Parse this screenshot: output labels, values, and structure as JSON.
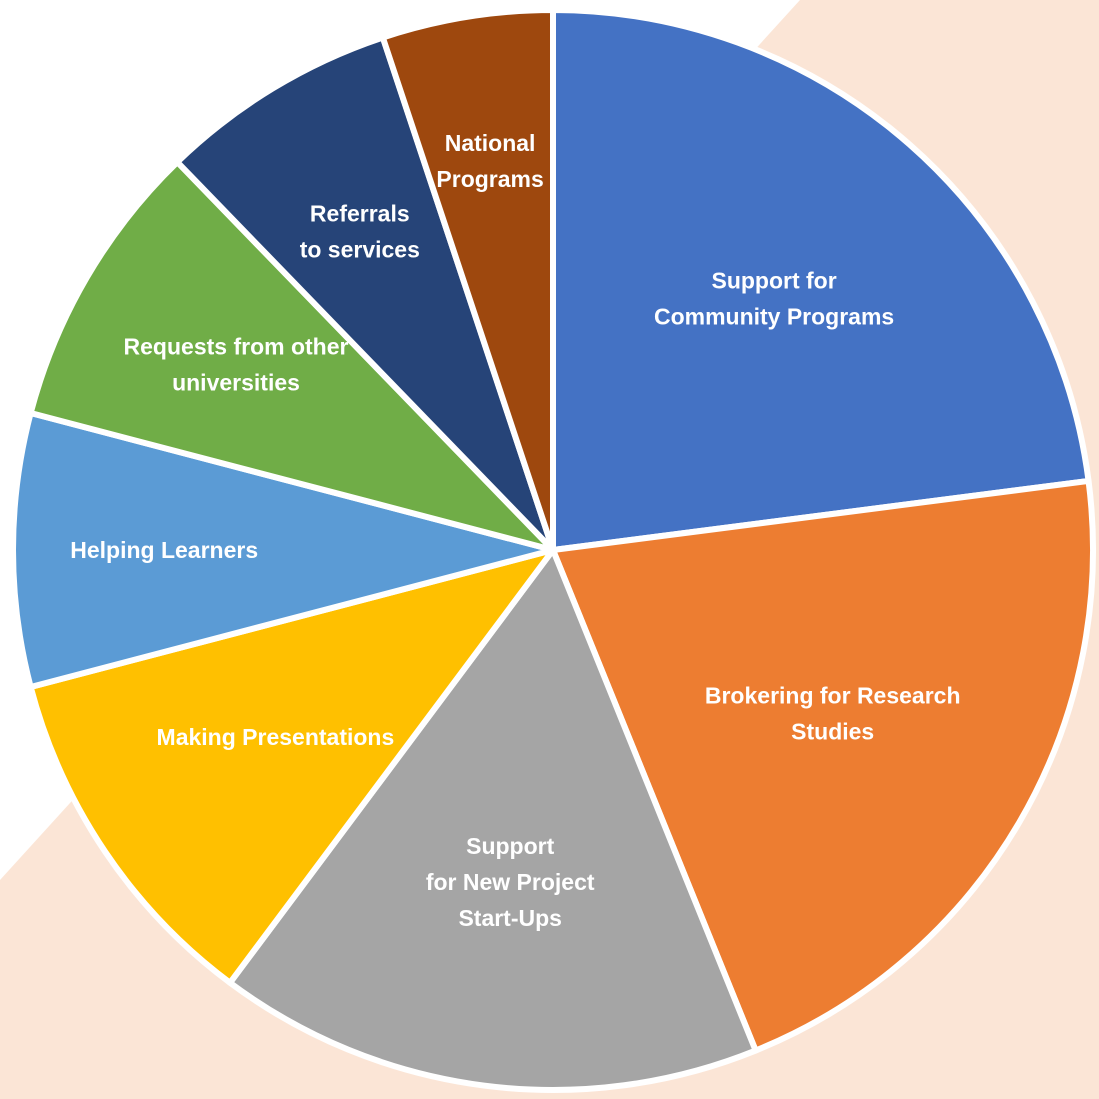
{
  "chart_data": {
    "type": "pie",
    "title": "",
    "colors": {
      "background": "#ffffff",
      "backdrop": "#fbe5d6"
    },
    "slices": [
      {
        "label_lines": [
          "Support for",
          "Community Programs"
        ],
        "value": 22.5,
        "color": "#4472c4"
      },
      {
        "label_lines": [
          "Brokering for Research",
          "Studies"
        ],
        "value": 20.5,
        "color": "#ed7d31"
      },
      {
        "label_lines": [
          "Support",
          "for New Project",
          "Start-Ups"
        ],
        "value": 16.0,
        "color": "#a5a5a5"
      },
      {
        "label_lines": [
          "Making Presentations"
        ],
        "value": 10.5,
        "color": "#ffc000"
      },
      {
        "label_lines": [
          "Helping Learners"
        ],
        "value": 8.0,
        "color": "#5b9bd5"
      },
      {
        "label_lines": [
          "Requests from other",
          "universities"
        ],
        "value": 8.5,
        "color": "#70ad47"
      },
      {
        "label_lines": [
          "Referrals",
          "to services"
        ],
        "value": 7.0,
        "color": "#264478"
      },
      {
        "label_lines": [
          "National",
          "Programs"
        ],
        "value": 5.0,
        "color": "#9e480e"
      }
    ]
  }
}
